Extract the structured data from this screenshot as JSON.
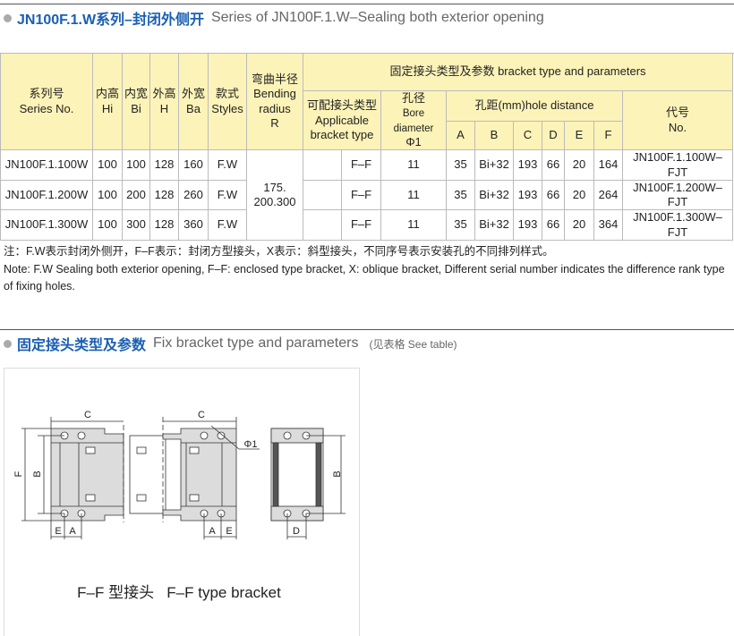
{
  "section1": {
    "title_cn": "JN100F.1.W系列–封闭外侧开",
    "title_en": "Series of JN100F.1.W–Sealing both exterior opening"
  },
  "table": {
    "headers": {
      "series_cn": "系列号",
      "series_en": "Series No.",
      "hi_cn": "内高",
      "hi_en": "Hi",
      "bi_cn": "内宽",
      "bi_en": "Bi",
      "h_cn": "外高",
      "h_en": "H",
      "ba_cn": "外宽",
      "ba_en": "Ba",
      "styles_cn": "款式",
      "styles_en": "Styles",
      "radius_cn": "弯曲半径",
      "radius_en1": "Bending",
      "radius_en2": "radius",
      "radius_en3": "R",
      "bracket_group": "固定接头类型及参数 bracket type and parameters",
      "applicable_cn": "可配接头类型",
      "applicable_en1": "Applicable",
      "applicable_en2": "bracket type",
      "bore_cn": "孔径",
      "bore_en": "Bore diameter",
      "bore_sym": "Φ1",
      "hole_distance": "孔距(mm)hole distance",
      "A": "A",
      "B": "B",
      "C": "C",
      "D": "D",
      "E": "E",
      "F": "F",
      "code_cn": "代号",
      "code_en": "No."
    },
    "bending_radius": "175.\n200.300",
    "rows": [
      {
        "series": "JN100F.1.100W",
        "hi": "100",
        "bi": "100",
        "h": "128",
        "ba": "160",
        "style": "F.W",
        "type": "F–F",
        "bore": "11",
        "A": "35",
        "B": "Bi+32",
        "C": "193",
        "D": "66",
        "E": "20",
        "F": "164",
        "code": "JN100F.1.100W–FJT"
      },
      {
        "series": "JN100F.1.200W",
        "hi": "100",
        "bi": "200",
        "h": "128",
        "ba": "260",
        "style": "F.W",
        "type": "F–F",
        "bore": "11",
        "A": "35",
        "B": "Bi+32",
        "C": "193",
        "D": "66",
        "E": "20",
        "F": "264",
        "code": "JN100F.1.200W–FJT"
      },
      {
        "series": "JN100F.1.300W",
        "hi": "100",
        "bi": "300",
        "h": "128",
        "ba": "360",
        "style": "F.W",
        "type": "F–F",
        "bore": "11",
        "A": "35",
        "B": "Bi+32",
        "C": "193",
        "D": "66",
        "E": "20",
        "F": "364",
        "code": "JN100F.1.300W–FJT"
      }
    ]
  },
  "notes": {
    "cn": "注：F.W表示封闭外侧开，F–F表示：封闭方型接头，X表示：斜型接头，不同序号表示安装孔的不同排列样式。",
    "en": "Note: F.W Sealing both exterior opening, F–F: enclosed type bracket, X: oblique bracket, Different serial number indicates the difference rank type of fixing holes."
  },
  "section2": {
    "title_cn": "固定接头类型及参数",
    "title_en": "Fix bracket type and parameters",
    "see_table": "(见表格 See table)"
  },
  "diagram": {
    "labels": {
      "C": "C",
      "F": "F",
      "B": "B",
      "E": "E",
      "A": "A",
      "D": "D",
      "phi": "Φ1"
    },
    "caption": "F–F 型接头   F–F type bracket"
  },
  "colors": {
    "accent": "#1a5fb4",
    "header_bg": "#fcf3b8",
    "bracket_fill": "#dcdcdc"
  }
}
